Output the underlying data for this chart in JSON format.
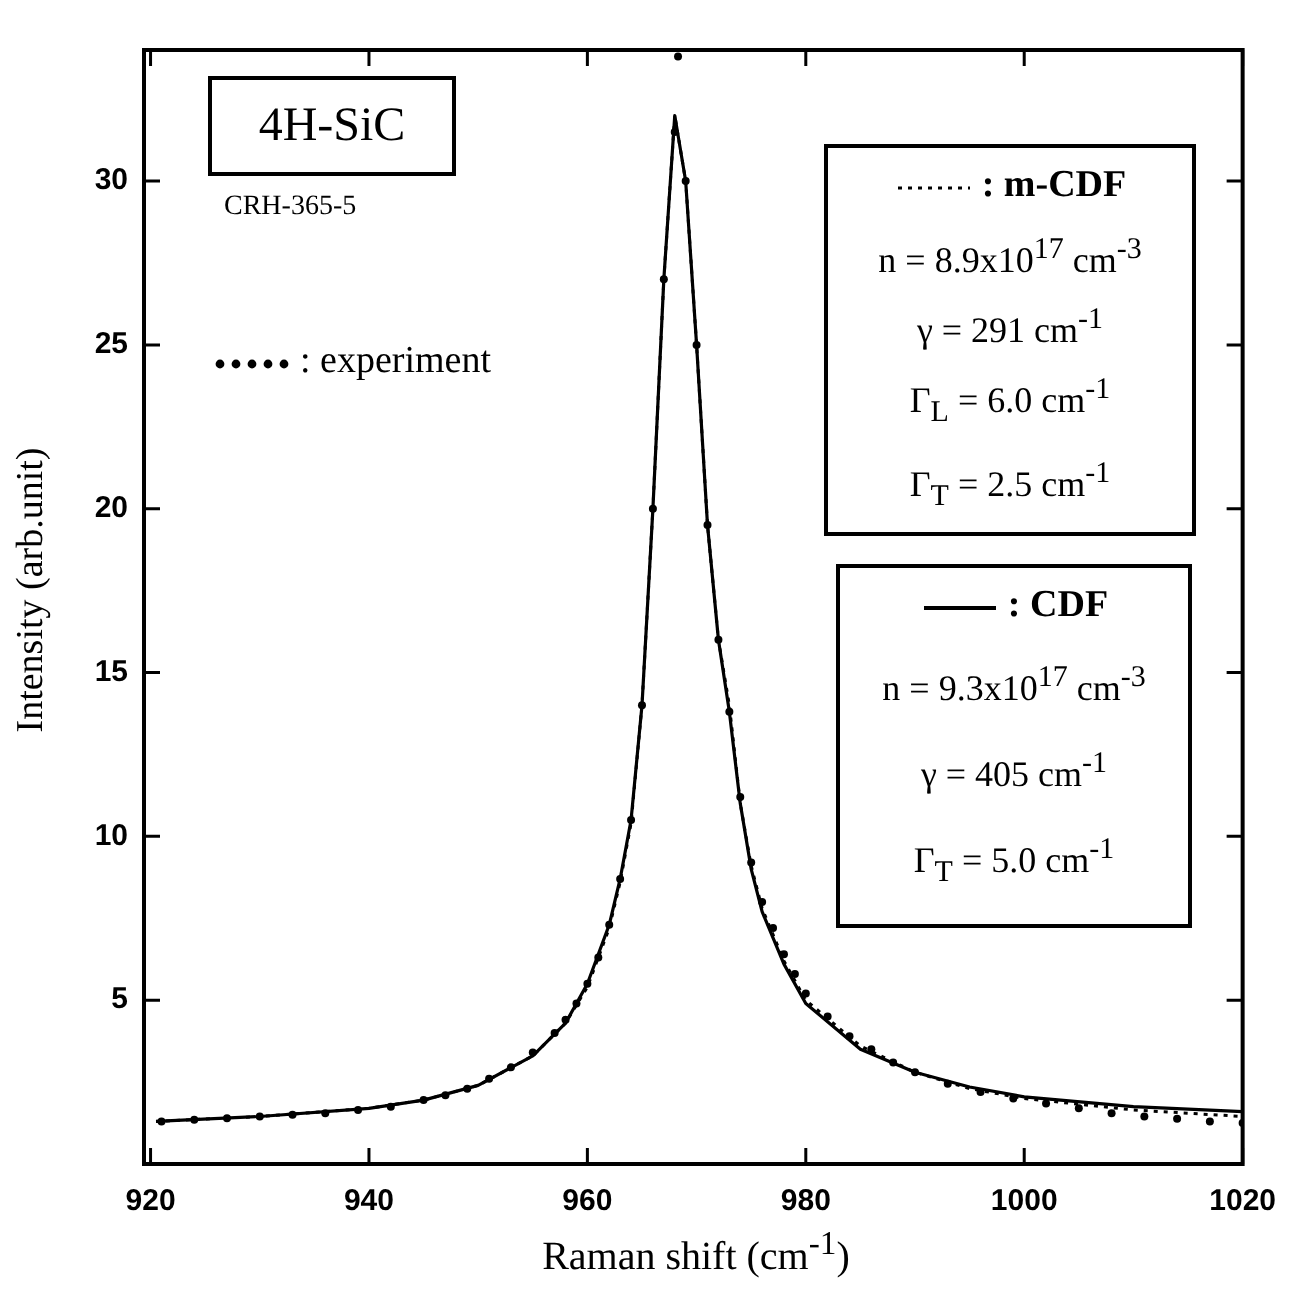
{
  "chart_data": {
    "type": "line",
    "xlabel": "Raman shift (cm$^{-1}$)",
    "ylabel": "Intensity (arb.unit)",
    "xlim": [
      919.4,
      1020
    ],
    "ylim": [
      0,
      34
    ],
    "xticks": [
      920,
      940,
      960,
      980,
      1000,
      1020
    ],
    "yticks": [
      5,
      10,
      15,
      20,
      25,
      30
    ],
    "grid": false,
    "legend": "top right",
    "annotations": [
      "4H-SiC",
      "CRH-365-5",
      "n = 8.9x10$^{17}$ cm$^{-3}$",
      "γ = 291 cm$^{-1}$",
      "Γ$_{L}$ = 6.0 cm$^{-1}$",
      "Γ$_{T}$ = 2.5 cm$^{-1}$",
      "n = 9.3x10$^{17}$ cm$^{-3}$",
      "γ = 405 cm$^{-1}$",
      "Γ$_{T}$ = 5.0 cm$^{-1}$"
    ],
    "series": [
      {
        "name": ": experiment",
        "type": "scatter",
        "marker": "circle",
        "color": "#000000",
        "x": [
          921,
          924,
          927,
          930,
          933,
          936,
          939,
          942,
          945,
          947,
          949,
          951,
          953,
          955,
          957,
          958,
          959,
          960,
          961,
          962,
          963,
          964,
          965,
          966,
          967,
          968,
          968.3,
          969,
          970,
          971,
          972,
          973,
          974,
          975,
          976,
          977,
          978,
          979,
          980,
          982,
          984,
          986,
          988,
          990,
          993,
          996,
          999,
          1002,
          1005,
          1008,
          1011,
          1014,
          1017,
          1020
        ],
        "values": [
          1.3,
          1.35,
          1.4,
          1.45,
          1.5,
          1.55,
          1.65,
          1.75,
          1.95,
          2.1,
          2.3,
          2.6,
          2.95,
          3.4,
          4.0,
          4.4,
          4.9,
          5.5,
          6.3,
          7.3,
          8.7,
          10.5,
          14,
          20,
          27,
          31.5,
          33.8,
          30,
          25,
          19.5,
          16,
          13.8,
          11.2,
          9.2,
          8,
          7.2,
          6.4,
          5.8,
          5.2,
          4.5,
          3.9,
          3.5,
          3.1,
          2.8,
          2.45,
          2.2,
          2.0,
          1.85,
          1.7,
          1.55,
          1.45,
          1.38,
          1.3,
          1.25
        ]
      },
      {
        "name": ": m-CDF",
        "type": "line",
        "line_style": "dotted",
        "color": "#000000",
        "x": [
          920.5,
          930,
          940,
          945,
          950,
          955,
          958,
          960,
          962,
          963,
          964,
          965,
          966,
          967,
          968,
          969,
          970,
          971,
          972,
          973,
          974,
          975,
          976,
          978,
          980,
          985,
          990,
          995,
          1000,
          1010,
          1020
        ],
        "values": [
          1.3,
          1.45,
          1.7,
          1.95,
          2.4,
          3.3,
          4.3,
          5.4,
          7.2,
          8.6,
          10.4,
          14,
          20,
          27,
          32,
          30,
          25,
          19.5,
          16,
          14,
          11,
          9.1,
          7.8,
          6.2,
          5.0,
          3.6,
          2.8,
          2.3,
          2.0,
          1.65,
          1.45
        ]
      },
      {
        "name": ": CDF",
        "type": "line",
        "line_style": "solid",
        "color": "#000000",
        "x": [
          920.5,
          930,
          940,
          945,
          950,
          955,
          958,
          960,
          962,
          963,
          964,
          965,
          966,
          967,
          968,
          969,
          970,
          971,
          972,
          973,
          974,
          975,
          976,
          978,
          980,
          985,
          990,
          995,
          1000,
          1010,
          1020
        ],
        "values": [
          1.3,
          1.45,
          1.7,
          1.95,
          2.4,
          3.3,
          4.3,
          5.5,
          7.3,
          8.7,
          10.5,
          14,
          20,
          27,
          32,
          30,
          25,
          19.5,
          16,
          13.8,
          11,
          9,
          7.7,
          6.1,
          4.9,
          3.5,
          2.8,
          2.35,
          2.05,
          1.75,
          1.6
        ]
      }
    ]
  }
}
